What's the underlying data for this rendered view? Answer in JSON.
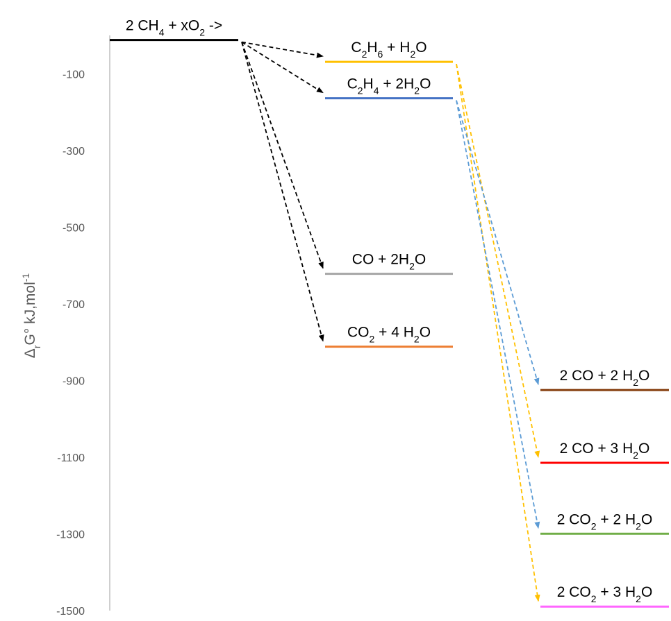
{
  "chart_data": {
    "type": "energy-level diagram",
    "ylabel": {
      "base": "Δ",
      "sub": "r",
      "mid": "G° kJ,mol",
      "sup": "-1"
    },
    "y_ticks": [
      "-100",
      "-300",
      "-500",
      "-700",
      "-900",
      "-1100",
      "-1300",
      "-1500"
    ],
    "ylim": [
      -1500,
      0
    ],
    "grid": false,
    "legend": "none",
    "levels": [
      {
        "id": "reactants",
        "label": [
          {
            "t": "2 CH"
          },
          {
            "t": "4",
            "s": "sub"
          },
          {
            "t": " + xO"
          },
          {
            "t": "2",
            "s": "sub"
          },
          {
            "t": " ->"
          }
        ],
        "value": -12,
        "column": 0,
        "color": "#000000"
      },
      {
        "id": "c2h6",
        "label": [
          {
            "t": "C"
          },
          {
            "t": "2",
            "s": "sub"
          },
          {
            "t": "H"
          },
          {
            "t": "6",
            "s": "sub"
          },
          {
            "t": " + H"
          },
          {
            "t": "2",
            "s": "sub"
          },
          {
            "t": "O"
          }
        ],
        "value": -69,
        "column": 1,
        "color": "#FFC000"
      },
      {
        "id": "c2h4",
        "label": [
          {
            "t": "C"
          },
          {
            "t": "2",
            "s": "sub"
          },
          {
            "t": "H"
          },
          {
            "t": "4",
            "s": "sub"
          },
          {
            "t": " + 2H"
          },
          {
            "t": "2",
            "s": "sub"
          },
          {
            "t": "O"
          }
        ],
        "value": -164,
        "column": 1,
        "color": "#4472C4"
      },
      {
        "id": "co",
        "label": [
          {
            "t": "CO + 2H"
          },
          {
            "t": "2",
            "s": "sub"
          },
          {
            "t": "O"
          }
        ],
        "value": -622,
        "column": 1,
        "color": "#A5A5A5"
      },
      {
        "id": "co2",
        "label": [
          {
            "t": "CO"
          },
          {
            "t": "2",
            "s": "sub"
          },
          {
            "t": " + 4 H"
          },
          {
            "t": "2",
            "s": "sub"
          },
          {
            "t": "O"
          }
        ],
        "value": -812,
        "column": 1,
        "color": "#ED7D31"
      },
      {
        "id": "2co2h2o",
        "label": [
          {
            "t": "2 CO + 2 H"
          },
          {
            "t": "2",
            "s": "sub"
          },
          {
            "t": "O"
          }
        ],
        "value": -925,
        "column": 2,
        "color": "#843C0C"
      },
      {
        "id": "2co3h2o",
        "label": [
          {
            "t": "2 CO + 3 H"
          },
          {
            "t": "2",
            "s": "sub"
          },
          {
            "t": "O"
          }
        ],
        "value": -1115,
        "column": 2,
        "color": "#FF0000"
      },
      {
        "id": "2co22h2o",
        "label": [
          {
            "t": "2 CO"
          },
          {
            "t": "2",
            "s": "sub"
          },
          {
            "t": " + 2 H"
          },
          {
            "t": "2",
            "s": "sub"
          },
          {
            "t": "O"
          }
        ],
        "value": -1300,
        "column": 2,
        "color": "#70AD47"
      },
      {
        "id": "2co23h2o",
        "label": [
          {
            "t": "2 CO"
          },
          {
            "t": "2",
            "s": "sub"
          },
          {
            "t": " + 3 H"
          },
          {
            "t": "2",
            "s": "sub"
          },
          {
            "t": "O"
          }
        ],
        "value": -1490,
        "column": 2,
        "color": "#FF66FF"
      }
    ],
    "arrows": [
      {
        "from": "reactants",
        "to": "c2h6",
        "color": "#000000"
      },
      {
        "from": "reactants",
        "to": "c2h4",
        "color": "#000000"
      },
      {
        "from": "reactants",
        "to": "co",
        "color": "#000000"
      },
      {
        "from": "reactants",
        "to": "co2",
        "color": "#000000"
      },
      {
        "from": "c2h6",
        "to": "2co3h2o",
        "color": "#FFC000"
      },
      {
        "from": "c2h6",
        "to": "2co23h2o",
        "color": "#FFC000"
      },
      {
        "from": "c2h4",
        "to": "2co2h2o",
        "color": "#5B9BD5"
      },
      {
        "from": "c2h4",
        "to": "2co22h2o",
        "color": "#5B9BD5"
      }
    ]
  }
}
